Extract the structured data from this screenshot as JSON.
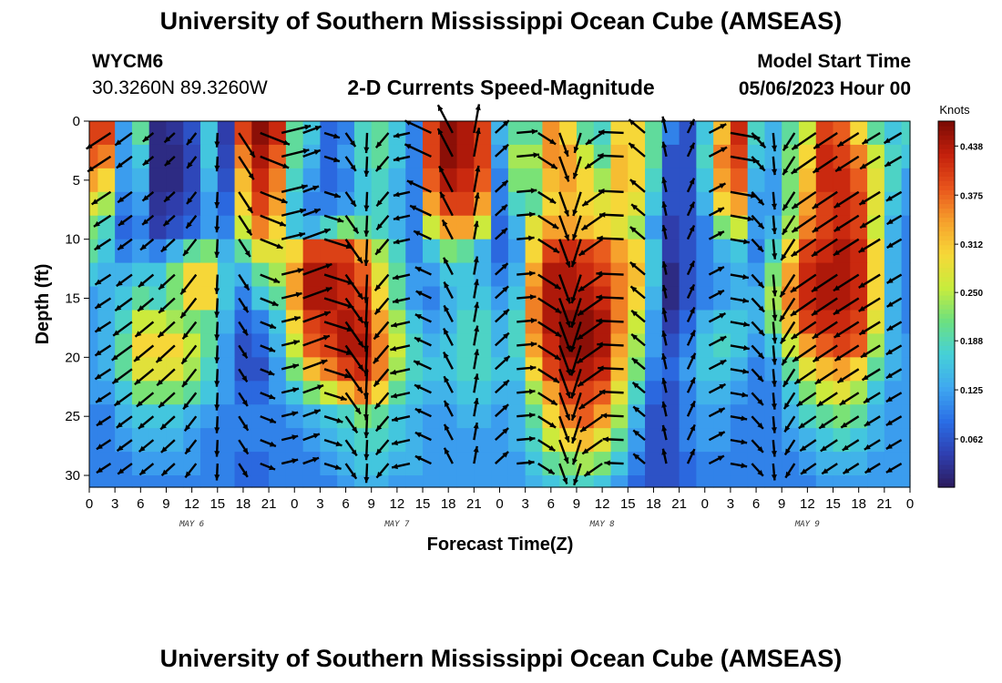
{
  "header": {
    "title": "University of Southern Mississippi Ocean Cube (AMSEAS)",
    "station_id": "WYCM6",
    "station_coords": "30.3260N  89.3260W",
    "plot_title": "2-D Currents Speed-Magnitude",
    "model_start_label": "Model Start Time",
    "model_start_value": "05/06/2023 Hour 00"
  },
  "footer": {
    "title": "University of Southern Mississippi Ocean Cube (AMSEAS)"
  },
  "chart_data": {
    "type": "heatmap",
    "xlabel": "Forecast Time(Z)",
    "ylabel": "Depth (ft)",
    "x_tick_labels": [
      "0",
      "3",
      "6",
      "9",
      "12",
      "15",
      "18",
      "21",
      "0",
      "3",
      "6",
      "9",
      "12",
      "15",
      "18",
      "21",
      "0",
      "3",
      "6",
      "9",
      "12",
      "15",
      "18",
      "21",
      "0",
      "3",
      "6",
      "9",
      "12",
      "15",
      "18",
      "21",
      "0"
    ],
    "day_labels": [
      "MAY 6",
      "MAY 7",
      "MAY 8",
      "MAY 9"
    ],
    "y_ticks": [
      0,
      5,
      10,
      15,
      20,
      25,
      30
    ],
    "ylim": [
      0,
      31
    ],
    "xlim_hours": [
      0,
      96
    ],
    "colorbar": {
      "unit": "Knots",
      "ticks": [
        0.062,
        0.125,
        0.188,
        0.25,
        0.312,
        0.375,
        0.438
      ],
      "range": [
        0,
        0.47
      ]
    },
    "colormap": [
      "#2c1a5c",
      "#2f3fb0",
      "#2a6ee6",
      "#3fa8f0",
      "#45d0d8",
      "#6ce080",
      "#c8ec3c",
      "#f6d838",
      "#f6a02c",
      "#e8541c",
      "#c4200c",
      "#7a0a05"
    ],
    "depth_bins_ft": [
      1,
      3,
      5,
      7,
      9,
      11,
      13,
      15,
      17,
      19,
      21,
      23,
      25,
      27,
      29,
      31
    ],
    "time_columns_hours": [
      0,
      2,
      4,
      6,
      8,
      10,
      12,
      14,
      16,
      18,
      20,
      22,
      24,
      26,
      28,
      30,
      32,
      34,
      36,
      38,
      40,
      42,
      44,
      46,
      48,
      50,
      52,
      54,
      56,
      58,
      60,
      62,
      64,
      66,
      68,
      70,
      72,
      74,
      76,
      78,
      80,
      82,
      84,
      86,
      88,
      90,
      92,
      94,
      96
    ],
    "speed_knots_rows": [
      [
        0.4,
        0.4,
        0.12,
        0.2,
        0.02,
        0.03,
        0.06,
        0.16,
        0.04,
        0.4,
        0.46,
        0.42,
        0.2,
        0.16,
        0.08,
        0.1,
        0.18,
        0.2,
        0.16,
        0.1,
        0.4,
        0.46,
        0.44,
        0.4,
        0.14,
        0.2,
        0.2,
        0.35,
        0.3,
        0.2,
        0.18,
        0.3,
        0.3,
        0.2,
        0.1,
        0.06,
        0.16,
        0.32,
        0.42,
        0.18,
        0.14,
        0.2,
        0.26,
        0.4,
        0.38,
        0.3,
        0.2,
        0.16,
        0.18
      ],
      [
        0.38,
        0.36,
        0.12,
        0.16,
        0.02,
        0.02,
        0.05,
        0.16,
        0.05,
        0.36,
        0.44,
        0.38,
        0.2,
        0.14,
        0.08,
        0.12,
        0.18,
        0.2,
        0.16,
        0.1,
        0.4,
        0.46,
        0.44,
        0.4,
        0.12,
        0.24,
        0.24,
        0.35,
        0.34,
        0.26,
        0.2,
        0.32,
        0.3,
        0.2,
        0.06,
        0.06,
        0.18,
        0.36,
        0.4,
        0.16,
        0.14,
        0.22,
        0.3,
        0.42,
        0.4,
        0.36,
        0.26,
        0.18,
        0.16
      ],
      [
        0.34,
        0.3,
        0.12,
        0.14,
        0.02,
        0.02,
        0.05,
        0.14,
        0.06,
        0.32,
        0.42,
        0.36,
        0.18,
        0.12,
        0.08,
        0.1,
        0.16,
        0.18,
        0.14,
        0.1,
        0.38,
        0.44,
        0.42,
        0.38,
        0.1,
        0.22,
        0.22,
        0.32,
        0.34,
        0.3,
        0.24,
        0.32,
        0.3,
        0.18,
        0.06,
        0.06,
        0.16,
        0.34,
        0.38,
        0.14,
        0.12,
        0.22,
        0.32,
        0.42,
        0.42,
        0.38,
        0.28,
        0.18,
        0.12
      ],
      [
        0.28,
        0.24,
        0.1,
        0.12,
        0.03,
        0.04,
        0.06,
        0.12,
        0.08,
        0.3,
        0.4,
        0.34,
        0.16,
        0.1,
        0.1,
        0.12,
        0.16,
        0.18,
        0.14,
        0.1,
        0.34,
        0.4,
        0.4,
        0.34,
        0.1,
        0.18,
        0.2,
        0.3,
        0.32,
        0.3,
        0.28,
        0.3,
        0.28,
        0.16,
        0.06,
        0.06,
        0.14,
        0.3,
        0.34,
        0.12,
        0.12,
        0.22,
        0.34,
        0.4,
        0.42,
        0.4,
        0.28,
        0.16,
        0.12
      ],
      [
        0.22,
        0.18,
        0.08,
        0.1,
        0.04,
        0.06,
        0.08,
        0.12,
        0.1,
        0.26,
        0.36,
        0.3,
        0.16,
        0.14,
        0.18,
        0.22,
        0.2,
        0.18,
        0.14,
        0.1,
        0.26,
        0.34,
        0.34,
        0.26,
        0.08,
        0.14,
        0.28,
        0.34,
        0.34,
        0.32,
        0.3,
        0.28,
        0.24,
        0.12,
        0.04,
        0.06,
        0.1,
        0.22,
        0.26,
        0.12,
        0.14,
        0.24,
        0.36,
        0.4,
        0.42,
        0.4,
        0.26,
        0.14,
        0.1
      ],
      [
        0.2,
        0.16,
        0.1,
        0.12,
        0.1,
        0.14,
        0.2,
        0.22,
        0.14,
        0.2,
        0.28,
        0.28,
        0.3,
        0.4,
        0.4,
        0.4,
        0.34,
        0.24,
        0.18,
        0.1,
        0.16,
        0.22,
        0.2,
        0.14,
        0.08,
        0.12,
        0.3,
        0.4,
        0.42,
        0.4,
        0.38,
        0.34,
        0.3,
        0.16,
        0.04,
        0.06,
        0.1,
        0.14,
        0.16,
        0.1,
        0.18,
        0.3,
        0.4,
        0.42,
        0.44,
        0.42,
        0.3,
        0.14,
        0.1
      ],
      [
        0.16,
        0.14,
        0.14,
        0.16,
        0.16,
        0.22,
        0.3,
        0.3,
        0.16,
        0.14,
        0.2,
        0.24,
        0.34,
        0.44,
        0.44,
        0.42,
        0.38,
        0.28,
        0.2,
        0.12,
        0.12,
        0.16,
        0.16,
        0.14,
        0.1,
        0.14,
        0.34,
        0.44,
        0.44,
        0.42,
        0.4,
        0.36,
        0.32,
        0.16,
        0.02,
        0.06,
        0.1,
        0.12,
        0.14,
        0.12,
        0.22,
        0.34,
        0.42,
        0.44,
        0.44,
        0.42,
        0.3,
        0.14,
        0.1
      ],
      [
        0.12,
        0.14,
        0.16,
        0.2,
        0.18,
        0.22,
        0.3,
        0.3,
        0.16,
        0.1,
        0.16,
        0.2,
        0.34,
        0.44,
        0.44,
        0.42,
        0.4,
        0.3,
        0.2,
        0.12,
        0.1,
        0.14,
        0.16,
        0.16,
        0.12,
        0.16,
        0.36,
        0.44,
        0.44,
        0.44,
        0.42,
        0.36,
        0.3,
        0.14,
        0.02,
        0.06,
        0.1,
        0.12,
        0.14,
        0.14,
        0.24,
        0.36,
        0.42,
        0.44,
        0.44,
        0.42,
        0.3,
        0.14,
        0.1
      ],
      [
        0.12,
        0.14,
        0.18,
        0.26,
        0.26,
        0.24,
        0.22,
        0.2,
        0.14,
        0.08,
        0.1,
        0.16,
        0.3,
        0.4,
        0.42,
        0.44,
        0.42,
        0.34,
        0.24,
        0.16,
        0.12,
        0.14,
        0.18,
        0.18,
        0.14,
        0.18,
        0.36,
        0.44,
        0.46,
        0.46,
        0.44,
        0.36,
        0.26,
        0.12,
        0.04,
        0.08,
        0.14,
        0.16,
        0.16,
        0.14,
        0.22,
        0.32,
        0.4,
        0.42,
        0.42,
        0.4,
        0.28,
        0.14,
        0.1
      ],
      [
        0.12,
        0.14,
        0.2,
        0.3,
        0.3,
        0.3,
        0.26,
        0.2,
        0.12,
        0.06,
        0.08,
        0.14,
        0.26,
        0.38,
        0.4,
        0.44,
        0.44,
        0.36,
        0.26,
        0.18,
        0.14,
        0.16,
        0.18,
        0.18,
        0.14,
        0.18,
        0.34,
        0.42,
        0.46,
        0.46,
        0.44,
        0.34,
        0.24,
        0.12,
        0.06,
        0.1,
        0.16,
        0.18,
        0.16,
        0.12,
        0.16,
        0.26,
        0.34,
        0.38,
        0.4,
        0.38,
        0.24,
        0.14,
        0.12
      ],
      [
        0.12,
        0.14,
        0.2,
        0.28,
        0.28,
        0.28,
        0.24,
        0.18,
        0.12,
        0.06,
        0.06,
        0.12,
        0.22,
        0.32,
        0.36,
        0.4,
        0.42,
        0.36,
        0.24,
        0.18,
        0.16,
        0.16,
        0.18,
        0.18,
        0.16,
        0.16,
        0.3,
        0.4,
        0.44,
        0.44,
        0.42,
        0.32,
        0.22,
        0.1,
        0.08,
        0.12,
        0.16,
        0.16,
        0.14,
        0.1,
        0.12,
        0.2,
        0.28,
        0.32,
        0.34,
        0.3,
        0.2,
        0.14,
        0.12
      ],
      [
        0.12,
        0.12,
        0.16,
        0.22,
        0.22,
        0.22,
        0.2,
        0.16,
        0.12,
        0.08,
        0.08,
        0.12,
        0.16,
        0.22,
        0.26,
        0.32,
        0.36,
        0.3,
        0.2,
        0.16,
        0.14,
        0.14,
        0.16,
        0.16,
        0.14,
        0.14,
        0.24,
        0.34,
        0.4,
        0.4,
        0.38,
        0.28,
        0.18,
        0.08,
        0.06,
        0.1,
        0.14,
        0.14,
        0.12,
        0.1,
        0.1,
        0.16,
        0.22,
        0.26,
        0.28,
        0.24,
        0.16,
        0.12,
        0.12
      ],
      [
        0.1,
        0.1,
        0.14,
        0.16,
        0.16,
        0.16,
        0.14,
        0.12,
        0.1,
        0.1,
        0.1,
        0.1,
        0.12,
        0.14,
        0.16,
        0.18,
        0.22,
        0.2,
        0.16,
        0.14,
        0.12,
        0.12,
        0.14,
        0.14,
        0.12,
        0.14,
        0.2,
        0.3,
        0.36,
        0.38,
        0.34,
        0.24,
        0.14,
        0.06,
        0.06,
        0.1,
        0.12,
        0.12,
        0.1,
        0.1,
        0.1,
        0.14,
        0.18,
        0.2,
        0.22,
        0.2,
        0.14,
        0.12,
        0.12
      ],
      [
        0.1,
        0.1,
        0.12,
        0.14,
        0.14,
        0.14,
        0.12,
        0.1,
        0.1,
        0.1,
        0.1,
        0.1,
        0.1,
        0.12,
        0.14,
        0.16,
        0.18,
        0.18,
        0.16,
        0.14,
        0.12,
        0.12,
        0.12,
        0.12,
        0.12,
        0.14,
        0.18,
        0.26,
        0.3,
        0.32,
        0.28,
        0.2,
        0.12,
        0.06,
        0.06,
        0.1,
        0.12,
        0.12,
        0.1,
        0.1,
        0.1,
        0.12,
        0.14,
        0.16,
        0.18,
        0.16,
        0.14,
        0.12,
        0.12
      ],
      [
        0.1,
        0.1,
        0.1,
        0.12,
        0.12,
        0.12,
        0.12,
        0.1,
        0.1,
        0.08,
        0.08,
        0.1,
        0.1,
        0.1,
        0.12,
        0.14,
        0.16,
        0.16,
        0.14,
        0.14,
        0.12,
        0.12,
        0.12,
        0.12,
        0.12,
        0.12,
        0.16,
        0.2,
        0.22,
        0.24,
        0.22,
        0.16,
        0.1,
        0.06,
        0.06,
        0.08,
        0.1,
        0.1,
        0.1,
        0.1,
        0.1,
        0.1,
        0.12,
        0.14,
        0.14,
        0.14,
        0.12,
        0.12,
        0.12
      ],
      [
        0.1,
        0.1,
        0.1,
        0.1,
        0.1,
        0.1,
        0.1,
        0.1,
        0.1,
        0.08,
        0.08,
        0.1,
        0.1,
        0.1,
        0.1,
        0.12,
        0.14,
        0.14,
        0.12,
        0.12,
        0.12,
        0.12,
        0.12,
        0.12,
        0.12,
        0.12,
        0.14,
        0.16,
        0.18,
        0.18,
        0.16,
        0.12,
        0.08,
        0.06,
        0.06,
        0.08,
        0.1,
        0.1,
        0.1,
        0.1,
        0.1,
        0.1,
        0.1,
        0.12,
        0.12,
        0.12,
        0.12,
        0.12,
        0.12
      ]
    ],
    "vector_depths_ft": [
      1,
      3,
      6,
      8,
      10,
      13,
      15,
      17,
      19,
      21,
      23,
      25,
      27,
      29
    ],
    "vector_direction_deg_by_hour": [
      {
        "hour": 0,
        "deg": 210
      },
      {
        "hour": 12,
        "deg": 225
      },
      {
        "hour": 24,
        "deg": 35
      },
      {
        "hour": 36,
        "deg": 215
      },
      {
        "hour": 48,
        "deg": 35
      },
      {
        "hour": 60,
        "deg": 215
      },
      {
        "hour": 72,
        "deg": 35
      },
      {
        "hour": 84,
        "deg": 215
      },
      {
        "hour": 96,
        "deg": 210
      }
    ]
  }
}
